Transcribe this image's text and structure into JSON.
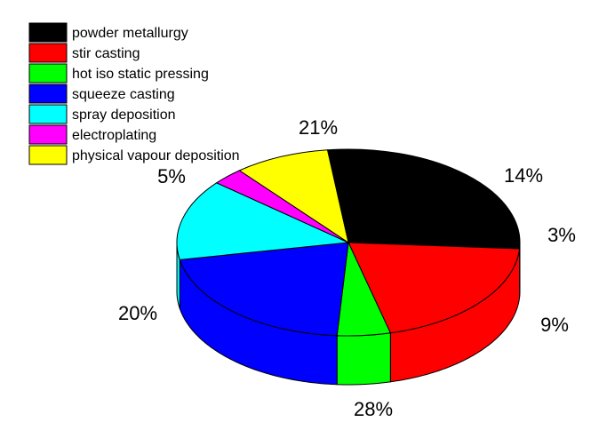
{
  "chart_data": {
    "type": "pie",
    "style": "3d",
    "title": "",
    "legend_position": "top-left",
    "slices": [
      {
        "label": "powder metallurgy",
        "value": 28,
        "display": "28%",
        "color": "#000000"
      },
      {
        "label": "stir casting",
        "value": 20,
        "display": "20%",
        "color": "#ff0000"
      },
      {
        "label": "hot iso static pressing",
        "value": 5,
        "display": "5%",
        "color": "#00ff00"
      },
      {
        "label": "squeeze casting",
        "value": 21,
        "display": "21%",
        "color": "#0000ff"
      },
      {
        "label": "spray deposition",
        "value": 14,
        "display": "14%",
        "color": "#00ffff"
      },
      {
        "label": "electroplating",
        "value": 3,
        "display": "3%",
        "color": "#ff00ff"
      },
      {
        "label": "physical vapour deposition",
        "value": 9,
        "display": "9%",
        "color": "#ffff00"
      }
    ]
  }
}
